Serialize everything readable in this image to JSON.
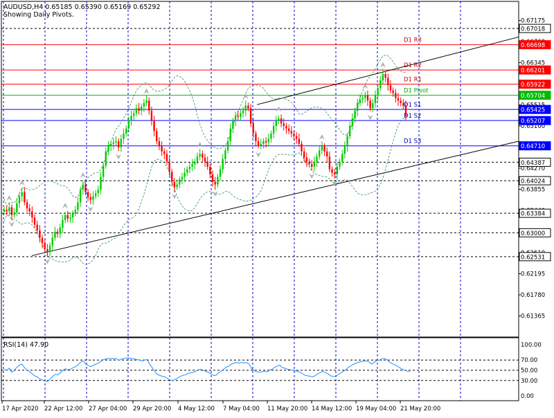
{
  "header": {
    "symbol_line": "AUDUSD,H4  0.65185 0.65390 0.65169 0.65292",
    "subtitle": "Showing Daily Pivots."
  },
  "rsi_title": "RSI(14) 47.90",
  "colors": {
    "background": "#ffffff",
    "frame": "#000000",
    "grid": "#0000cc",
    "bull": "#00cc00",
    "bear": "#ff0000",
    "resistance": "#ff0000",
    "pivot": "#00bb00",
    "support": "#0000ff",
    "bands": "#2e8b57",
    "rsi_line": "#1e90ff",
    "trendline": "#000000"
  },
  "chart_data": [
    {
      "type": "candlestick",
      "symbol": "AUDUSD",
      "timeframe": "H4",
      "ylim": [
        0.6095,
        0.6755
      ],
      "y_ticks": [
        "0.67175",
        "0.66760",
        "0.66345",
        "0.65930",
        "0.65515",
        "0.65100",
        "0.64685",
        "0.64270",
        "0.63855",
        "0.63440",
        "0.63025",
        "0.62610",
        "0.62195",
        "0.61780",
        "0.61365"
      ],
      "x_tick_labels": [
        "17 Apr 2020",
        "22 Apr 12:00",
        "27 Apr 04:00",
        "29 Apr 20:00",
        "4 May 12:00",
        "7 May 04:00",
        "11 May 20:00",
        "14 May 12:00",
        "19 May 04:00",
        "21 May 20:00"
      ],
      "price_labels": [
        {
          "text": "0.67018",
          "style": "white"
        },
        {
          "text": "0.66698",
          "style": "red"
        },
        {
          "text": "0.66201",
          "style": "red"
        },
        {
          "text": "0.65922",
          "style": "red"
        },
        {
          "text": "0.65704",
          "style": "green"
        },
        {
          "text": "0.65425",
          "style": "blue"
        },
        {
          "text": "0.65207",
          "style": "blue"
        },
        {
          "text": "0.64710",
          "style": "blue"
        },
        {
          "text": "0.64387",
          "style": "white"
        },
        {
          "text": "0.64024",
          "style": "white"
        },
        {
          "text": "0.63384",
          "style": "white"
        },
        {
          "text": "0.63000",
          "style": "white"
        },
        {
          "text": "0.62531",
          "style": "white"
        }
      ],
      "pivot_levels": [
        {
          "name": "D1 R3",
          "value": 0.66698,
          "kind": "resistance"
        },
        {
          "name": "D1 R2",
          "value": 0.66201,
          "kind": "resistance"
        },
        {
          "name": "D1 R1",
          "value": 0.65922,
          "kind": "resistance"
        },
        {
          "name": "D1 Pivot",
          "value": 0.65704,
          "kind": "pivot"
        },
        {
          "name": "D1 S1",
          "value": 0.65425,
          "kind": "support"
        },
        {
          "name": "D1 S2",
          "value": 0.65207,
          "kind": "support"
        },
        {
          "name": "D1 S3",
          "value": 0.6471,
          "kind": "support"
        }
      ],
      "dashed_levels": [
        0.67018,
        0.64387,
        0.64024,
        0.63384,
        0.63,
        0.62531
      ],
      "close_series": [
        0.6345,
        0.6342,
        0.635,
        0.6335,
        0.634,
        0.6358,
        0.6372,
        0.638,
        0.636,
        0.6348,
        0.6342,
        0.633,
        0.6316,
        0.6305,
        0.629,
        0.628,
        0.6268,
        0.6262,
        0.6275,
        0.629,
        0.6302,
        0.6298,
        0.631,
        0.6325,
        0.6335,
        0.6328,
        0.633,
        0.6338,
        0.6345,
        0.636,
        0.6385,
        0.6395,
        0.638,
        0.637,
        0.6365,
        0.6372,
        0.6378,
        0.6385,
        0.641,
        0.6432,
        0.646,
        0.647,
        0.6475,
        0.6478,
        0.648,
        0.6468,
        0.6485,
        0.6495,
        0.6505,
        0.652,
        0.653,
        0.6535,
        0.6545,
        0.654,
        0.6548,
        0.6555,
        0.656,
        0.654,
        0.652,
        0.65,
        0.648,
        0.647,
        0.646,
        0.6455,
        0.644,
        0.642,
        0.64,
        0.639,
        0.6395,
        0.6405,
        0.641,
        0.6418,
        0.6425,
        0.643,
        0.6435,
        0.644,
        0.645,
        0.6455,
        0.6448,
        0.644,
        0.643,
        0.6415,
        0.64,
        0.6395,
        0.641,
        0.6425,
        0.6445,
        0.6462,
        0.648,
        0.6505,
        0.652,
        0.653,
        0.6528,
        0.6535,
        0.654,
        0.655,
        0.6545,
        0.6515,
        0.6495,
        0.648,
        0.6472,
        0.6475,
        0.648,
        0.6478,
        0.6485,
        0.6495,
        0.651,
        0.652,
        0.6525,
        0.6515,
        0.651,
        0.6505,
        0.65,
        0.6495,
        0.649,
        0.6485,
        0.6475,
        0.646,
        0.6448,
        0.644,
        0.6435,
        0.643,
        0.644,
        0.645,
        0.6462,
        0.647,
        0.646,
        0.645,
        0.6425,
        0.6418,
        0.6415,
        0.643,
        0.644,
        0.6455,
        0.647,
        0.649,
        0.651,
        0.6525,
        0.654,
        0.6555,
        0.6562,
        0.6565,
        0.657,
        0.656,
        0.6545,
        0.6555,
        0.657,
        0.6585,
        0.66,
        0.6612,
        0.6605,
        0.659,
        0.658,
        0.6575,
        0.6565,
        0.656,
        0.6555,
        0.655,
        0.65292
      ],
      "rsi": {
        "label": "RSI(14)",
        "value": 47.9,
        "ylim": [
          0,
          100
        ],
        "tick_labels": [
          "100.00",
          "70.00",
          "50.00",
          "30.00",
          "0.00"
        ],
        "levels": [
          70,
          50,
          30
        ],
        "series": [
          52,
          50,
          54,
          46,
          50,
          56,
          60,
          62,
          55,
          50,
          47,
          43,
          39,
          37,
          33,
          31,
          29,
          28,
          33,
          38,
          42,
          41,
          45,
          50,
          53,
          51,
          52,
          55,
          57,
          61,
          66,
          68,
          62,
          59,
          57,
          60,
          62,
          64,
          68,
          71,
          72,
          73,
          73,
          72,
          73,
          69,
          72,
          73,
          74,
          74,
          73,
          72,
          71,
          70,
          68,
          70,
          71,
          62,
          55,
          48,
          42,
          40,
          38,
          37,
          34,
          31,
          30,
          32,
          35,
          38,
          40,
          41,
          44,
          45,
          46,
          48,
          51,
          52,
          50,
          48,
          46,
          43,
          40,
          40,
          45,
          48,
          52,
          56,
          58,
          62,
          64,
          65,
          64,
          65,
          64,
          65,
          62,
          53,
          49,
          47,
          46,
          47,
          48,
          47,
          50,
          52,
          56,
          58,
          60,
          55,
          54,
          52,
          51,
          50,
          49,
          48,
          46,
          43,
          40,
          39,
          38,
          37,
          40,
          43,
          46,
          48,
          45,
          43,
          39,
          38,
          38,
          42,
          45,
          48,
          52,
          56,
          59,
          62,
          64,
          66,
          67,
          68,
          68,
          66,
          62,
          66,
          69,
          70,
          72,
          73,
          71,
          66,
          63,
          61,
          58,
          55,
          52,
          50,
          48,
          47.9
        ]
      }
    }
  ]
}
